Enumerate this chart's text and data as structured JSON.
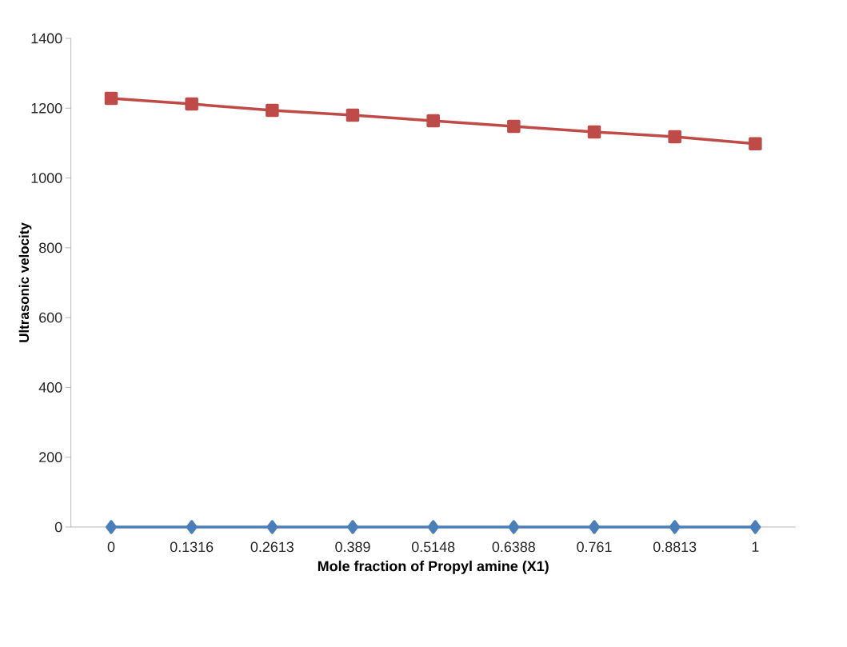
{
  "chart_data": {
    "type": "line",
    "xlabel": "Mole fraction of Propyl amine (X1)",
    "ylabel": "Ultrasonic velocity",
    "categories": [
      "0",
      "0.1316",
      "0.2613",
      "0.389",
      "0.5148",
      "0.6388",
      "0.761",
      "0.8813",
      "1"
    ],
    "series": [
      {
        "color": "#4a7ebb",
        "marker": "diamond",
        "values": [
          0,
          0,
          0,
          0,
          0,
          0,
          0,
          0,
          0
        ]
      },
      {
        "color": "#be4b48",
        "marker": "square",
        "values": [
          1228,
          1212,
          1194,
          1180,
          1164,
          1148,
          1132,
          1118,
          1098
        ]
      }
    ],
    "ylim": [
      0,
      1400
    ],
    "yticks": [
      0,
      200,
      400,
      600,
      800,
      1000,
      1200,
      1400
    ],
    "grid": false
  }
}
